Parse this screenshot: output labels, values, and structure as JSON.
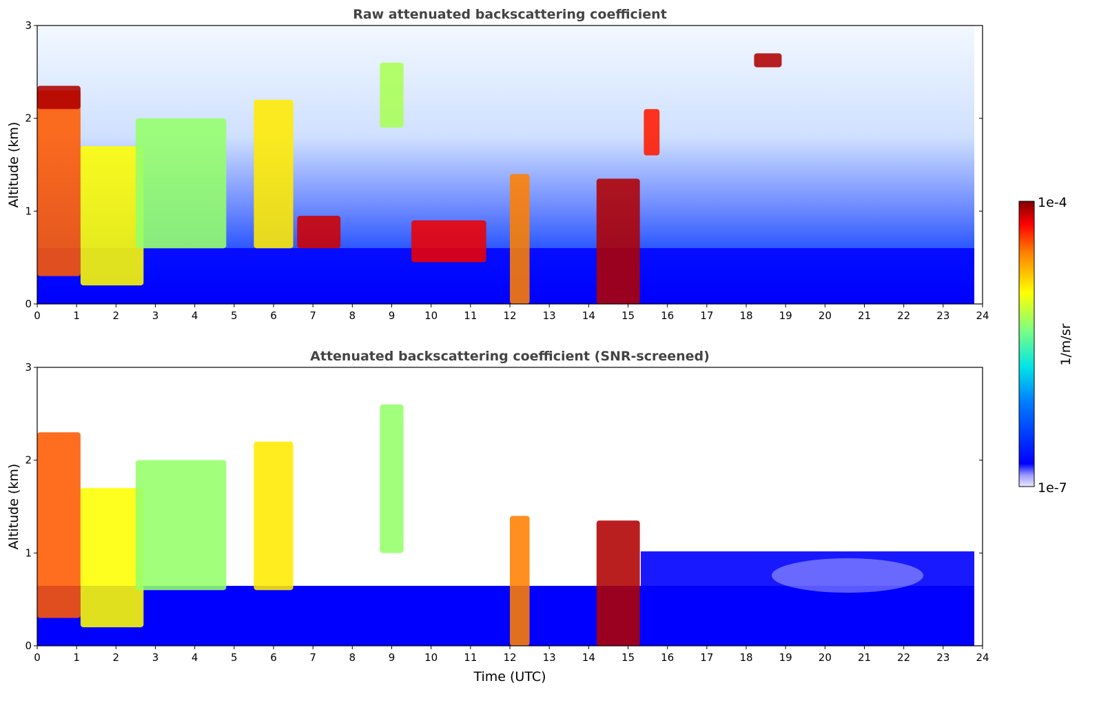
{
  "chart_data": [
    {
      "type": "heatmap",
      "title": "Raw attenuated backscattering coefficient",
      "xlabel": "",
      "ylabel": "Altitude (km)",
      "xlim": [
        0,
        24
      ],
      "ylim": [
        0,
        3
      ],
      "xticks": [
        "0",
        "1",
        "2",
        "3",
        "4",
        "5",
        "6",
        "7",
        "8",
        "9",
        "10",
        "11",
        "12",
        "13",
        "14",
        "15",
        "16",
        "17",
        "18",
        "19",
        "20",
        "21",
        "22",
        "23",
        "24"
      ],
      "yticks": [
        "0",
        "1",
        "2",
        "3"
      ],
      "data_end_time": 23.8,
      "features": [
        {
          "t0": 0,
          "t1": 1.1,
          "z0": 0.3,
          "z1": 2.3,
          "level": 0.85
        },
        {
          "t0": 0,
          "t1": 1.1,
          "z0": 2.1,
          "z1": 2.35,
          "level": 0.97
        },
        {
          "t0": 1.1,
          "t1": 2.7,
          "z0": 0.2,
          "z1": 1.7,
          "level": 0.7
        },
        {
          "t0": 2.5,
          "t1": 4.8,
          "z0": 0.6,
          "z1": 2.0,
          "level": 0.6
        },
        {
          "t0": 5.5,
          "t1": 6.5,
          "z0": 0.6,
          "z1": 2.2,
          "level": 0.72
        },
        {
          "t0": 6.6,
          "t1": 7.7,
          "z0": 0.6,
          "z1": 0.95,
          "level": 0.95
        },
        {
          "t0": 8.7,
          "t1": 9.3,
          "z0": 1.9,
          "z1": 2.6,
          "level": 0.62
        },
        {
          "t0": 9.5,
          "t1": 11.4,
          "z0": 0.45,
          "z1": 0.9,
          "level": 0.93
        },
        {
          "t0": 12.0,
          "t1": 12.5,
          "z0": 0.0,
          "z1": 1.4,
          "level": 0.82
        },
        {
          "t0": 14.2,
          "t1": 15.3,
          "z0": 0.0,
          "z1": 1.35,
          "level": 0.97
        },
        {
          "t0": 15.4,
          "t1": 15.8,
          "z0": 1.6,
          "z1": 2.1,
          "level": 0.9
        },
        {
          "t0": 18.2,
          "t1": 18.9,
          "z0": 2.55,
          "z1": 2.7,
          "level": 0.97
        }
      ]
    },
    {
      "type": "heatmap",
      "title": "Attenuated backscattering coefficient (SNR-screened)",
      "xlabel": "Time (UTC)",
      "ylabel": "Altitude (km)",
      "xlim": [
        0,
        24
      ],
      "ylim": [
        0,
        3
      ],
      "xticks": [
        "0",
        "1",
        "2",
        "3",
        "4",
        "5",
        "6",
        "7",
        "8",
        "9",
        "10",
        "11",
        "12",
        "13",
        "14",
        "15",
        "16",
        "17",
        "18",
        "19",
        "20",
        "21",
        "22",
        "23",
        "24"
      ],
      "yticks": [
        "0",
        "1",
        "2",
        "3"
      ],
      "data_end_time": 23.8,
      "features": [
        {
          "t0": 0,
          "t1": 1.1,
          "z0": 0.3,
          "z1": 2.3,
          "level": 0.85
        },
        {
          "t0": 1.1,
          "t1": 2.7,
          "z0": 0.2,
          "z1": 1.7,
          "level": 0.7
        },
        {
          "t0": 2.5,
          "t1": 4.8,
          "z0": 0.6,
          "z1": 2.0,
          "level": 0.6
        },
        {
          "t0": 5.5,
          "t1": 6.5,
          "z0": 0.6,
          "z1": 2.2,
          "level": 0.72
        },
        {
          "t0": 8.7,
          "t1": 9.3,
          "z0": 1.0,
          "z1": 2.6,
          "level": 0.6
        },
        {
          "t0": 12.0,
          "t1": 12.5,
          "z0": 0.0,
          "z1": 1.4,
          "level": 0.82
        },
        {
          "t0": 14.2,
          "t1": 15.3,
          "z0": 0.0,
          "z1": 1.35,
          "level": 0.97
        }
      ]
    }
  ],
  "colorbar": {
    "label": "1/m/sr",
    "max_label": "1e-4",
    "min_label": "1e-7",
    "colormap": [
      "#00007f",
      "#0000ff",
      "#007fff",
      "#00ffff",
      "#7fff7f",
      "#ffff00",
      "#ff7f00",
      "#ff0000",
      "#7f0000"
    ]
  }
}
